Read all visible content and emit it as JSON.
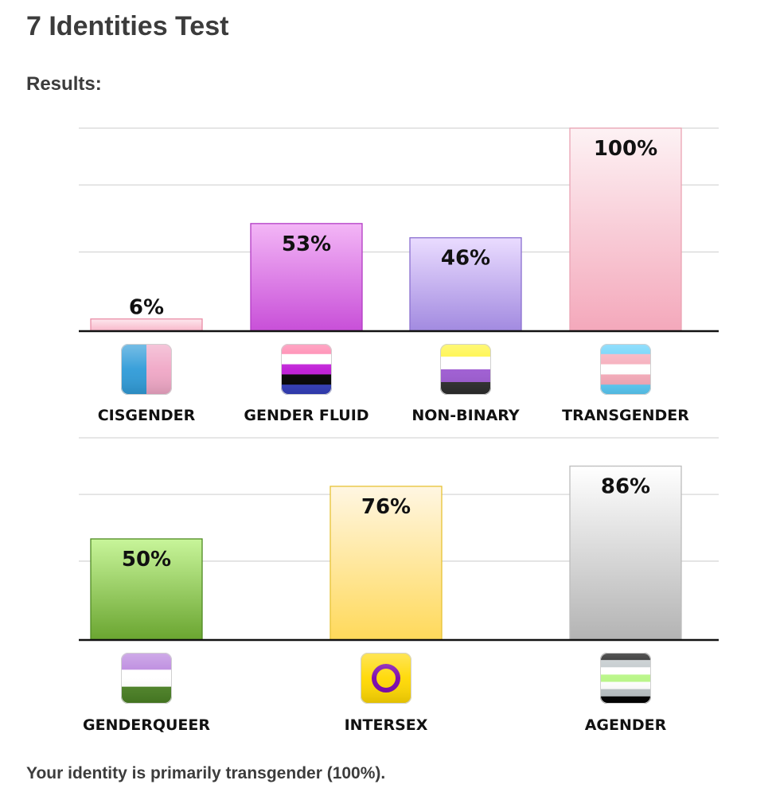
{
  "page": {
    "title": "7 Identities Test",
    "results_label": "Results:",
    "summary": "Your identity is primarily transgender (100%)."
  },
  "chart_data": [
    {
      "type": "bar",
      "categories": [
        "CISGENDER",
        "GENDER FLUID",
        "NON-BINARY",
        "TRANSGENDER"
      ],
      "values": [
        6,
        53,
        46,
        100
      ],
      "value_labels": [
        "6%",
        "53%",
        "46%",
        "100%"
      ],
      "ylim": [
        0,
        100
      ],
      "grid": true,
      "icons": [
        "cisgender-flag-icon",
        "genderfluid-flag-icon",
        "nonbinary-flag-icon",
        "transgender-flag-icon"
      ],
      "bar_colors": [
        {
          "top": "#fde8ee",
          "bottom": "#f8b6c9",
          "border": "#e98fa8"
        },
        {
          "top": "#f3b6f6",
          "bottom": "#c84fd8",
          "border": "#b23bc4"
        },
        {
          "top": "#eadcff",
          "bottom": "#a28ae0",
          "border": "#8a6fd0"
        },
        {
          "top": "#fdf2f4",
          "bottom": "#f4a8bb",
          "border": "#eaa3b4"
        }
      ]
    },
    {
      "type": "bar",
      "categories": [
        "GENDERQUEER",
        "INTERSEX",
        "AGENDER"
      ],
      "values": [
        50,
        76,
        86
      ],
      "value_labels": [
        "50%",
        "76%",
        "86%"
      ],
      "ylim": [
        0,
        100
      ],
      "grid": true,
      "icons": [
        "genderqueer-flag-icon",
        "intersex-flag-icon",
        "agender-flag-icon"
      ],
      "bar_colors": [
        {
          "top": "#c8f59a",
          "bottom": "#6aa530",
          "border": "#4f8a23"
        },
        {
          "top": "#fff6e2",
          "bottom": "#ffd95a",
          "border": "#e6c235"
        },
        {
          "top": "#ffffff",
          "bottom": "#b3b3b3",
          "border": "#bdbdbd"
        }
      ]
    }
  ]
}
